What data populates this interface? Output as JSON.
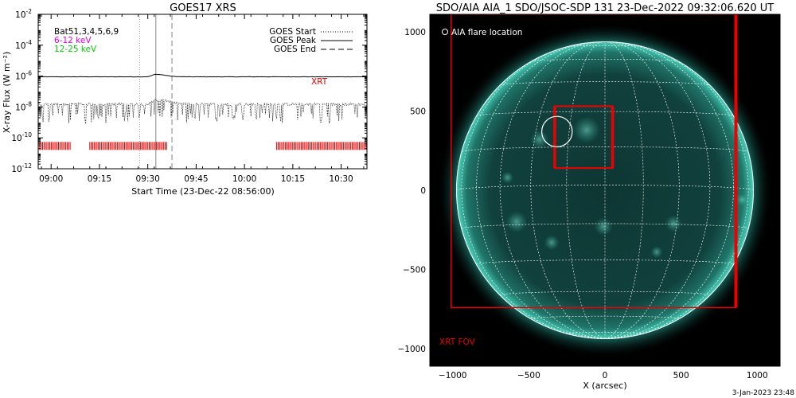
{
  "chart_data": [
    {
      "type": "line",
      "title": "GOES17 XRS",
      "xlabel": "Start Time (23-Dec-22 08:56:00)",
      "ylabel": "X-ray Flux (W m⁻²)",
      "x_ticks": [
        "09:00",
        "09:15",
        "09:30",
        "09:45",
        "10:00",
        "10:15",
        "10:30"
      ],
      "x_tick_minutes": [
        0,
        15,
        30,
        45,
        60,
        75,
        90
      ],
      "x_range_minutes": [
        -4,
        98
      ],
      "y_scale": "log",
      "ylim": [
        1e-12,
        0.01
      ],
      "y_tick_bases": [
        "10",
        "10",
        "10",
        "10",
        "10",
        "10"
      ],
      "y_tick_exps": [
        "-12",
        "-10",
        "-8",
        "-6",
        "-4",
        "-2"
      ],
      "y_tick_values": [
        1e-12,
        1e-10,
        1e-08,
        1e-06,
        0.0001,
        0.01
      ],
      "legend_left": [
        {
          "text": "Bat51,3,4,5,6,9",
          "color": "#000000"
        },
        {
          "text": "6-12 keV",
          "color": "#e000e0"
        },
        {
          "text": "12-25 keV",
          "color": "#00cc00"
        }
      ],
      "legend_right": [
        {
          "text": "GOES Start",
          "style": "dotted"
        },
        {
          "text": "GOES Peak",
          "style": "solid"
        },
        {
          "text": "GOES End",
          "style": "dashed"
        }
      ],
      "markers_minutes": {
        "start": 27.5,
        "peak": 32.5,
        "end": 37.5
      },
      "xrt_label": "XRT",
      "series": [
        {
          "name": "",
          "baseline": 9e-07,
          "peak": 1.3e-06,
          "style": "solid",
          "color": "#000000"
        },
        {
          "name": "",
          "baseline": 1.5e-08,
          "peak": 3e-08,
          "style": "dotted",
          "color": "#000000"
        }
      ],
      "xrt_coverage_minutes": [
        [
          -4,
          6
        ],
        [
          12,
          36
        ],
        [
          70,
          98
        ]
      ],
      "xrt_y": 3e-11,
      "colors": {
        "xrt": "#ee0000",
        "axis": "#000000"
      }
    },
    {
      "type": "image",
      "title": "SDO/AIA AIA_1 SDO/JSOC-SDP 131 23-Dec-2022 09:32:06.620 UT",
      "xlabel": "X (arcsec)",
      "ylabel": "",
      "xlim": [
        -1150,
        1150
      ],
      "ylim": [
        -1110,
        1110
      ],
      "x_ticks": [
        -1000,
        -500,
        0,
        500,
        1000
      ],
      "y_ticks": [
        -1000,
        -500,
        0,
        500,
        1000
      ],
      "legend_text": "AIA flare location",
      "solar_radius_arcsec": 975,
      "flare_location": [
        -315,
        370
      ],
      "flare_radius_arcsec": 100,
      "xrt_fov": {
        "x0": -1010,
        "x1": 860,
        "y0": -740,
        "y1": 1110
      },
      "xrt_fov_label": "XRT FOV",
      "xrt_box": {
        "x0": -330,
        "x1": 50,
        "y0": 140,
        "y1": 530
      },
      "colors": {
        "disk": "#0f3f3c",
        "glow": "#2fbfaa",
        "grid": "#ffffff",
        "box": "#ee0000"
      }
    }
  ],
  "footer": {
    "timestamp": "3-Jan-2023 23:48"
  }
}
